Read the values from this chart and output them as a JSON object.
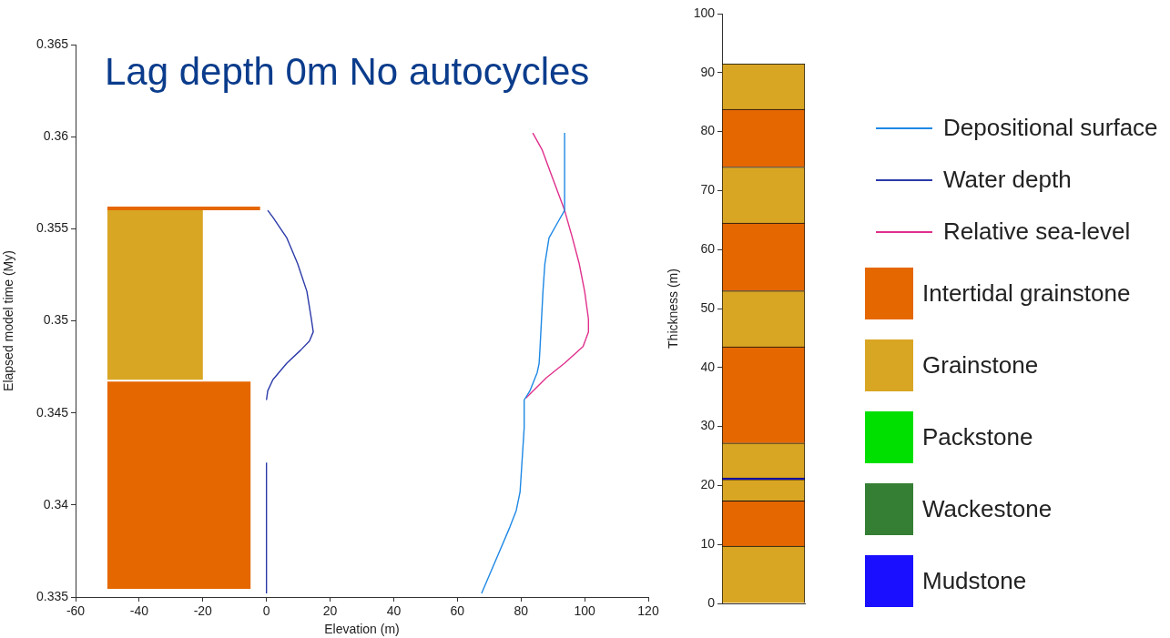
{
  "chart_data": [
    {
      "type": "line",
      "title": "Lag depth 0m No autocycles",
      "xlabel": "Elevation (m)",
      "ylabel": "Elapsed model time (My)",
      "xlim": [
        -60,
        120
      ],
      "xticks": [
        -60,
        -40,
        -20,
        0,
        20,
        40,
        60,
        80,
        100,
        120
      ],
      "ylim": [
        0.335,
        0.365
      ],
      "yticks": [
        0.335,
        0.34,
        0.345,
        0.35,
        0.355,
        0.36,
        0.365
      ],
      "grid": false,
      "legend": "right",
      "marker": "none",
      "series": [
        {
          "type": "area",
          "color": "#e56700",
          "x": [
            -50,
            -5,
            -5,
            -50,
            -50
          ],
          "values": [
            0.33545,
            0.33545,
            0.3467,
            0.3467,
            0.33545
          ]
        },
        {
          "type": "area",
          "color": "#d9a624",
          "x": [
            -50,
            -20,
            -20,
            -50,
            -50
          ],
          "values": [
            0.3468,
            0.3468,
            0.356,
            0.356,
            0.3468
          ]
        },
        {
          "type": "area",
          "color": "#e56700",
          "x": [
            -50,
            -2,
            -2,
            -50,
            -50
          ],
          "values": [
            0.356,
            0.356,
            0.3562,
            0.3562,
            0.356
          ]
        },
        {
          "type": "line",
          "name": "Depositional surface",
          "color": "#1e88e5",
          "x": [
            67.6,
            72.8,
            76.5,
            78.5,
            79.7,
            81.0,
            81.0,
            82.8,
            85.1,
            85.7,
            86.0,
            86.9,
            87.5,
            88.8,
            91.4,
            93.7,
            93.7
          ],
          "values": [
            0.3352,
            0.3373,
            0.3388,
            0.3397,
            0.3407,
            0.3442,
            0.3457,
            0.3462,
            0.3472,
            0.3477,
            0.3486,
            0.3516,
            0.3531,
            0.3545,
            0.3553,
            0.356,
            0.3602
          ]
        },
        {
          "type": "line",
          "name": "Water depth",
          "color": "#2b3aa8",
          "x": [
            0,
            0,
            null,
            0,
            0.4,
            2,
            6.4,
            10.7,
            13.5,
            14.7,
            14.1,
            12.7,
            9.8,
            6.4,
            2.1,
            0.4
          ],
          "values": [
            0.3352,
            0.3423,
            null,
            0.3457,
            0.3462,
            0.3468,
            0.3477,
            0.3484,
            0.3489,
            0.3494,
            0.3501,
            0.3516,
            0.3531,
            0.3545,
            0.3556,
            0.356
          ]
        },
        {
          "type": "line",
          "name": "Relative sea-level",
          "color": "#e0308c",
          "x": [
            81.5,
            87.9,
            93.7,
            99.5,
            101.2,
            101.2,
            100.0,
            98.3,
            96.0,
            93.7,
            89.4,
            86.6,
            83.7
          ],
          "values": [
            0.3458,
            0.3469,
            0.3477,
            0.3486,
            0.3494,
            0.3501,
            0.3516,
            0.3531,
            0.3546,
            0.356,
            0.358,
            0.3593,
            0.3602
          ]
        }
      ]
    },
    {
      "type": "bar",
      "stacked": true,
      "ylabel": "Thickness (m)",
      "categories": [
        null
      ],
      "ylim": [
        0,
        100
      ],
      "yticks": [
        0,
        10,
        20,
        30,
        40,
        50,
        60,
        70,
        80,
        90,
        100
      ],
      "grid": false,
      "legend": "right",
      "series": [
        {
          "color": "#d9a624",
          "values": [
            9.7
          ]
        },
        {
          "name": "Intertidal grainstone",
          "color": "#e56700",
          "values": [
            7.7
          ]
        },
        {
          "name": "Grainstone",
          "color": "#d9a624",
          "values": [
            3.6
          ]
        },
        {
          "name": "Packstone",
          "color": "#00e000",
          "values": [
            null
          ]
        },
        {
          "name": "Wackestone",
          "color": "#357f35",
          "values": [
            null
          ]
        },
        {
          "name": "Mudstone",
          "color": "#1a10ff",
          "values": [
            0.3
          ]
        },
        {
          "color": "#d9a624",
          "values": [
            5.9
          ]
        },
        {
          "color": "#e56700",
          "values": [
            16.3
          ]
        },
        {
          "color": "#d9a624",
          "values": [
            9.5
          ]
        },
        {
          "color": "#e56700",
          "values": [
            11.5
          ]
        },
        {
          "color": "#d9a624",
          "values": [
            9.5
          ]
        },
        {
          "color": "#e56700",
          "values": [
            9.8
          ]
        },
        {
          "color": "#d9a624",
          "values": [
            7.7
          ]
        }
      ]
    }
  ]
}
